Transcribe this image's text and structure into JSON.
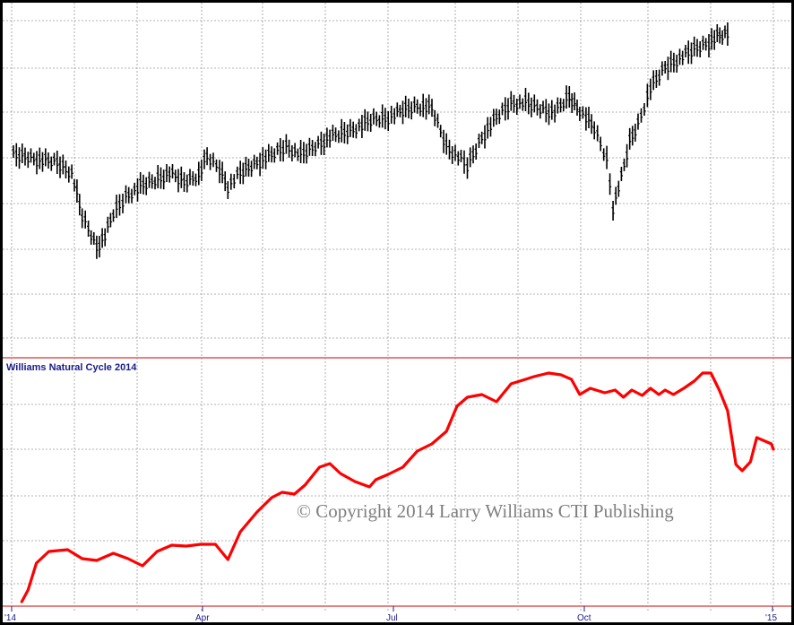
{
  "colors": {
    "price": "#000000",
    "cycle": "#ff0000",
    "separator": "#e88080",
    "grid": "#9a9a9a",
    "panel_title": "#1a1a8c",
    "axis_text": "#1a1a8c",
    "watermark": "#7f7f7f"
  },
  "watermark": "© Copyright 2014 Larry Williams CTI Publishing",
  "chart_data": [
    {
      "type": "line",
      "title": "",
      "grid": true,
      "x_tick_labels": [
        "'14",
        "Apr",
        "Jul",
        "Oct",
        "'15"
      ],
      "x_range": [
        "2014-01-01",
        "2015-01-01"
      ],
      "series": [
        {
          "kind": "ohlc-bars",
          "points": [
            [
              "2014-01-01",
              170
            ],
            [
              "2014-01-08",
              172
            ],
            [
              "2014-01-15",
              176
            ],
            [
              "2014-01-22",
              178
            ],
            [
              "2014-01-29",
              190
            ],
            [
              "2014-02-03",
              238
            ],
            [
              "2014-02-06",
              252
            ],
            [
              "2014-02-10",
              272
            ],
            [
              "2014-02-14",
              260
            ],
            [
              "2014-02-18",
              235
            ],
            [
              "2014-02-24",
              216
            ],
            [
              "2014-03-03",
              205
            ],
            [
              "2014-03-10",
              198
            ],
            [
              "2014-03-17",
              190
            ],
            [
              "2014-03-24",
              200
            ],
            [
              "2014-03-31",
              192
            ],
            [
              "2014-04-04",
              172
            ],
            [
              "2014-04-10",
              185
            ],
            [
              "2014-04-14",
              205
            ],
            [
              "2014-04-20",
              190
            ],
            [
              "2014-04-28",
              178
            ],
            [
              "2014-05-05",
              170
            ],
            [
              "2014-05-12",
              160
            ],
            [
              "2014-05-19",
              170
            ],
            [
              "2014-05-26",
              160
            ],
            [
              "2014-06-02",
              150
            ],
            [
              "2014-06-09",
              145
            ],
            [
              "2014-06-16",
              138
            ],
            [
              "2014-06-23",
              130
            ],
            [
              "2014-06-30",
              128
            ],
            [
              "2014-07-03",
              125
            ],
            [
              "2014-07-07",
              120
            ],
            [
              "2014-07-14",
              115
            ],
            [
              "2014-07-21",
              118
            ],
            [
              "2014-07-28",
              160
            ],
            [
              "2014-08-04",
              175
            ],
            [
              "2014-08-07",
              182
            ],
            [
              "2014-08-14",
              150
            ],
            [
              "2014-08-21",
              128
            ],
            [
              "2014-08-28",
              112
            ],
            [
              "2014-09-04",
              112
            ],
            [
              "2014-09-11",
              118
            ],
            [
              "2014-09-18",
              122
            ],
            [
              "2014-09-25",
              105
            ],
            [
              "2014-09-30",
              120
            ],
            [
              "2014-10-03",
              128
            ],
            [
              "2014-10-07",
              140
            ],
            [
              "2014-10-13",
              175
            ],
            [
              "2014-10-16",
              228
            ],
            [
              "2014-10-20",
              195
            ],
            [
              "2014-10-24",
              155
            ],
            [
              "2014-10-28",
              135
            ],
            [
              "2014-11-03",
              95
            ],
            [
              "2014-11-10",
              72
            ],
            [
              "2014-11-17",
              62
            ],
            [
              "2014-11-24",
              52
            ],
            [
              "2014-12-01",
              44
            ],
            [
              "2014-12-05",
              38
            ],
            [
              "2014-12-10",
              35
            ]
          ]
        },
        {
          "name": "Williams Natural Cycle 2014",
          "kind": "line",
          "points": [
            [
              "2014-01-05",
              668
            ],
            [
              "2014-01-08",
              655
            ],
            [
              "2014-01-12",
              625
            ],
            [
              "2014-01-18",
              612
            ],
            [
              "2014-01-27",
              610
            ],
            [
              "2014-02-03",
              620
            ],
            [
              "2014-02-10",
              622
            ],
            [
              "2014-02-18",
              614
            ],
            [
              "2014-02-25",
              620
            ],
            [
              "2014-03-04",
              628
            ],
            [
              "2014-03-11",
              612
            ],
            [
              "2014-03-18",
              605
            ],
            [
              "2014-03-25",
              606
            ],
            [
              "2014-04-01",
              604
            ],
            [
              "2014-04-08",
              604
            ],
            [
              "2014-04-14",
              621
            ],
            [
              "2014-04-20",
              590
            ],
            [
              "2014-04-28",
              568
            ],
            [
              "2014-05-05",
              552
            ],
            [
              "2014-05-10",
              546
            ],
            [
              "2014-05-16",
              548
            ],
            [
              "2014-05-21",
              538
            ],
            [
              "2014-05-28",
              518
            ],
            [
              "2014-06-02",
              514
            ],
            [
              "2014-06-07",
              525
            ],
            [
              "2014-06-14",
              534
            ],
            [
              "2014-06-21",
              540
            ],
            [
              "2014-06-24",
              532
            ],
            [
              "2014-06-30",
              526
            ],
            [
              "2014-07-07",
              518
            ],
            [
              "2014-07-14",
              500
            ],
            [
              "2014-07-21",
              492
            ],
            [
              "2014-07-28",
              478
            ],
            [
              "2014-08-02",
              450
            ],
            [
              "2014-08-07",
              440
            ],
            [
              "2014-08-14",
              437
            ],
            [
              "2014-08-21",
              445
            ],
            [
              "2014-08-28",
              425
            ],
            [
              "2014-09-04",
              420
            ],
            [
              "2014-09-08",
              417
            ],
            [
              "2014-09-15",
              413
            ],
            [
              "2014-09-21",
              415
            ],
            [
              "2014-09-26",
              420
            ],
            [
              "2014-09-30",
              437
            ],
            [
              "2014-10-05",
              430
            ],
            [
              "2014-10-12",
              435
            ],
            [
              "2014-10-17",
              432
            ],
            [
              "2014-10-21",
              440
            ],
            [
              "2014-10-25",
              432
            ],
            [
              "2014-10-30",
              438
            ],
            [
              "2014-11-03",
              430
            ],
            [
              "2014-11-07",
              437
            ],
            [
              "2014-11-10",
              432
            ],
            [
              "2014-11-14",
              437
            ],
            [
              "2014-11-19",
              430
            ],
            [
              "2014-11-24",
              422
            ],
            [
              "2014-11-28",
              413
            ],
            [
              "2014-12-02",
              413
            ],
            [
              "2014-12-06",
              432
            ],
            [
              "2014-12-10",
              455
            ],
            [
              "2014-12-14",
              515
            ],
            [
              "2014-12-17",
              522
            ],
            [
              "2014-12-21",
              512
            ],
            [
              "2014-12-24",
              485
            ],
            [
              "2014-12-27",
              488
            ],
            [
              "2014-12-31",
              492
            ],
            [
              "2015-01-01",
              498
            ]
          ]
        }
      ]
    }
  ]
}
